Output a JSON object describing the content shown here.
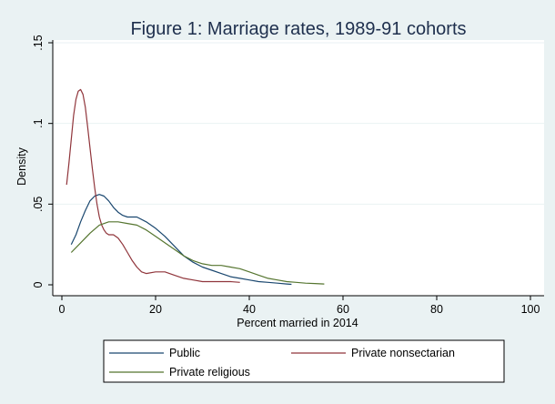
{
  "chart_data": {
    "type": "line",
    "title": "Figure 1: Marriage rates, 1989-91 cohorts",
    "xlabel": "Percent married in 2014",
    "ylabel": "Density",
    "xlim": [
      0,
      100
    ],
    "ylim": [
      0,
      0.15
    ],
    "x_ticks": [
      0,
      20,
      40,
      60,
      80,
      100
    ],
    "x_tick_labels": [
      "0",
      "20",
      "40",
      "60",
      "80",
      "100"
    ],
    "y_ticks": [
      0,
      0.05,
      0.1,
      0.15
    ],
    "y_tick_labels": [
      "0",
      ".05",
      ".1",
      ".15"
    ],
    "grid": true,
    "legend_position": "bottom",
    "background_color": "#eaf2f3",
    "plot_background_color": "#ffffff",
    "series": [
      {
        "name": "Public",
        "color": "#1a476f",
        "points": [
          [
            2,
            0.025
          ],
          [
            3,
            0.031
          ],
          [
            4,
            0.039
          ],
          [
            5,
            0.046
          ],
          [
            6,
            0.052
          ],
          [
            7,
            0.055
          ],
          [
            8,
            0.056
          ],
          [
            9,
            0.055
          ],
          [
            10,
            0.052
          ],
          [
            11,
            0.048
          ],
          [
            12,
            0.045
          ],
          [
            13,
            0.043
          ],
          [
            14,
            0.042
          ],
          [
            16,
            0.042
          ],
          [
            18,
            0.039
          ],
          [
            20,
            0.035
          ],
          [
            22,
            0.03
          ],
          [
            24,
            0.024
          ],
          [
            26,
            0.018
          ],
          [
            28,
            0.014
          ],
          [
            30,
            0.011
          ],
          [
            32,
            0.009
          ],
          [
            34,
            0.007
          ],
          [
            36,
            0.005
          ],
          [
            38,
            0.004
          ],
          [
            40,
            0.003
          ],
          [
            42,
            0.002
          ],
          [
            44,
            0.0015
          ],
          [
            46,
            0.001
          ],
          [
            48,
            0.0005
          ],
          [
            49,
            0.0003
          ]
        ]
      },
      {
        "name": "Private nonsectarian",
        "color": "#90353b",
        "points": [
          [
            1,
            0.062
          ],
          [
            1.5,
            0.075
          ],
          [
            2,
            0.09
          ],
          [
            2.5,
            0.105
          ],
          [
            3,
            0.115
          ],
          [
            3.5,
            0.12
          ],
          [
            4,
            0.121
          ],
          [
            4.5,
            0.118
          ],
          [
            5,
            0.11
          ],
          [
            5.5,
            0.098
          ],
          [
            6,
            0.085
          ],
          [
            6.5,
            0.072
          ],
          [
            7,
            0.06
          ],
          [
            7.5,
            0.05
          ],
          [
            8,
            0.042
          ],
          [
            8.5,
            0.037
          ],
          [
            9,
            0.034
          ],
          [
            9.5,
            0.032
          ],
          [
            10,
            0.031
          ],
          [
            11,
            0.031
          ],
          [
            12,
            0.029
          ],
          [
            13,
            0.025
          ],
          [
            14,
            0.02
          ],
          [
            15,
            0.015
          ],
          [
            16,
            0.011
          ],
          [
            17,
            0.008
          ],
          [
            18,
            0.007
          ],
          [
            20,
            0.008
          ],
          [
            22,
            0.008
          ],
          [
            24,
            0.006
          ],
          [
            26,
            0.004
          ],
          [
            28,
            0.003
          ],
          [
            30,
            0.002
          ],
          [
            32,
            0.002
          ],
          [
            34,
            0.002
          ],
          [
            36,
            0.002
          ],
          [
            38,
            0.0015
          ]
        ]
      },
      {
        "name": "Private religious",
        "color": "#55752f",
        "points": [
          [
            2,
            0.02
          ],
          [
            4,
            0.026
          ],
          [
            6,
            0.032
          ],
          [
            8,
            0.037
          ],
          [
            10,
            0.039
          ],
          [
            12,
            0.039
          ],
          [
            14,
            0.038
          ],
          [
            16,
            0.037
          ],
          [
            18,
            0.034
          ],
          [
            20,
            0.03
          ],
          [
            22,
            0.026
          ],
          [
            24,
            0.022
          ],
          [
            26,
            0.018
          ],
          [
            28,
            0.015
          ],
          [
            30,
            0.013
          ],
          [
            32,
            0.012
          ],
          [
            34,
            0.012
          ],
          [
            36,
            0.011
          ],
          [
            38,
            0.01
          ],
          [
            40,
            0.008
          ],
          [
            42,
            0.006
          ],
          [
            44,
            0.004
          ],
          [
            46,
            0.003
          ],
          [
            48,
            0.002
          ],
          [
            50,
            0.0015
          ],
          [
            52,
            0.001
          ],
          [
            54,
            0.0008
          ],
          [
            56,
            0.0005
          ]
        ]
      }
    ]
  }
}
